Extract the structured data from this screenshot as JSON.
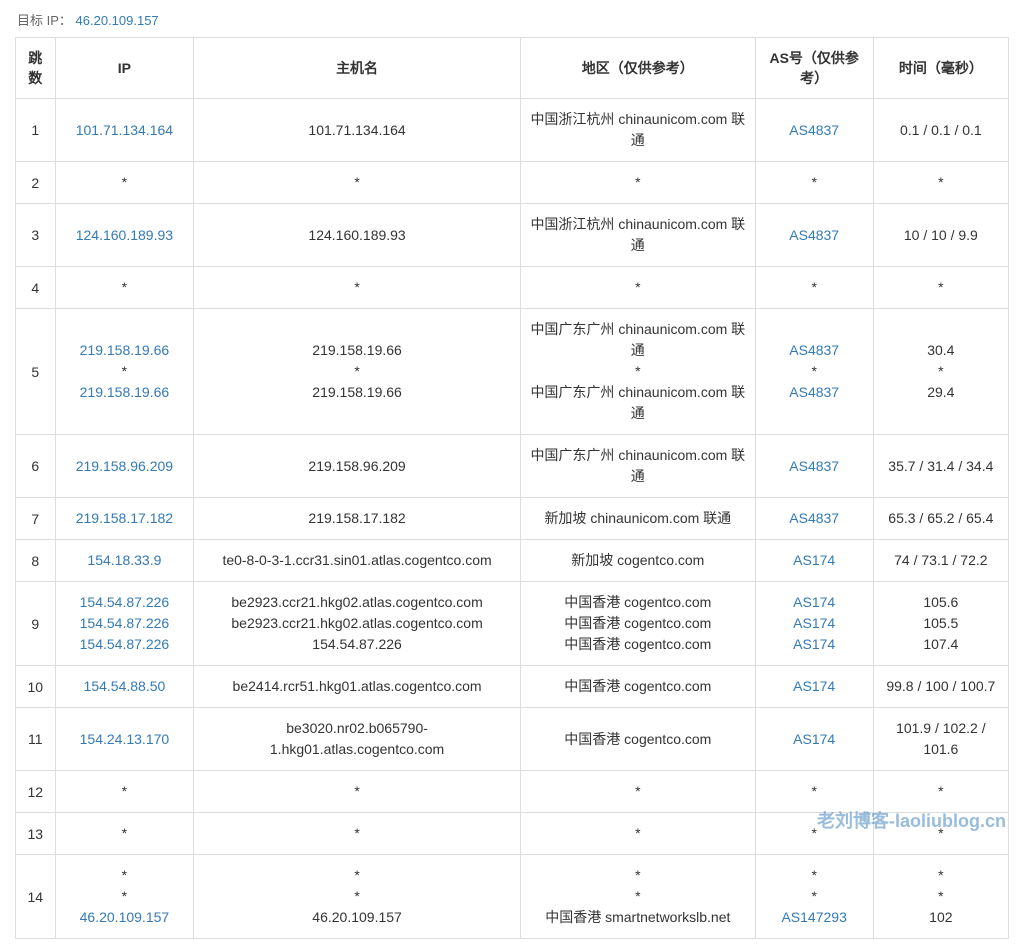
{
  "target_ip_label": "目标 IP：",
  "target_ip": "46.20.109.157",
  "columns": {
    "hop": "跳数",
    "ip": "IP",
    "hostname": "主机名",
    "region": "地区（仅供参考）",
    "as": "AS号（仅供参考）",
    "time": "时间（毫秒）"
  },
  "rows": [
    {
      "hop": "1",
      "ip": [
        "101.71.134.164"
      ],
      "ip_link": [
        true
      ],
      "hostname": [
        "101.71.134.164"
      ],
      "region": [
        "中国浙江杭州 chinaunicom.com 联通"
      ],
      "as": [
        "AS4837"
      ],
      "as_link": [
        true
      ],
      "time": [
        "0.1 / 0.1 / 0.1"
      ]
    },
    {
      "hop": "2",
      "ip": [
        "*"
      ],
      "ip_link": [
        false
      ],
      "hostname": [
        "*"
      ],
      "region": [
        "*"
      ],
      "as": [
        "*"
      ],
      "as_link": [
        false
      ],
      "time": [
        "*"
      ]
    },
    {
      "hop": "3",
      "ip": [
        "124.160.189.93"
      ],
      "ip_link": [
        true
      ],
      "hostname": [
        "124.160.189.93"
      ],
      "region": [
        "中国浙江杭州 chinaunicom.com 联通"
      ],
      "as": [
        "AS4837"
      ],
      "as_link": [
        true
      ],
      "time": [
        "10 / 10 / 9.9"
      ]
    },
    {
      "hop": "4",
      "ip": [
        "*"
      ],
      "ip_link": [
        false
      ],
      "hostname": [
        "*"
      ],
      "region": [
        "*"
      ],
      "as": [
        "*"
      ],
      "as_link": [
        false
      ],
      "time": [
        "*"
      ]
    },
    {
      "hop": "5",
      "ip": [
        "219.158.19.66",
        "*",
        "219.158.19.66"
      ],
      "ip_link": [
        true,
        false,
        true
      ],
      "hostname": [
        "219.158.19.66",
        "*",
        "219.158.19.66"
      ],
      "region": [
        "中国广东广州 chinaunicom.com 联通",
        "*",
        "中国广东广州 chinaunicom.com 联通"
      ],
      "as": [
        "AS4837",
        "*",
        "AS4837"
      ],
      "as_link": [
        true,
        false,
        true
      ],
      "time": [
        "30.4",
        "*",
        "29.4"
      ]
    },
    {
      "hop": "6",
      "ip": [
        "219.158.96.209"
      ],
      "ip_link": [
        true
      ],
      "hostname": [
        "219.158.96.209"
      ],
      "region": [
        "中国广东广州 chinaunicom.com 联通"
      ],
      "as": [
        "AS4837"
      ],
      "as_link": [
        true
      ],
      "time": [
        "35.7 / 31.4 / 34.4"
      ]
    },
    {
      "hop": "7",
      "ip": [
        "219.158.17.182"
      ],
      "ip_link": [
        true
      ],
      "hostname": [
        "219.158.17.182"
      ],
      "region": [
        "新加坡 chinaunicom.com 联通"
      ],
      "as": [
        "AS4837"
      ],
      "as_link": [
        true
      ],
      "time": [
        "65.3 / 65.2 / 65.4"
      ]
    },
    {
      "hop": "8",
      "ip": [
        "154.18.33.9"
      ],
      "ip_link": [
        true
      ],
      "hostname": [
        "te0-8-0-3-1.ccr31.sin01.atlas.cogentco.com"
      ],
      "region": [
        "新加坡 cogentco.com"
      ],
      "as": [
        "AS174"
      ],
      "as_link": [
        true
      ],
      "time": [
        "74 / 73.1 / 72.2"
      ]
    },
    {
      "hop": "9",
      "ip": [
        "154.54.87.226",
        "154.54.87.226",
        "154.54.87.226"
      ],
      "ip_link": [
        true,
        true,
        true
      ],
      "hostname": [
        "be2923.ccr21.hkg02.atlas.cogentco.com",
        "be2923.ccr21.hkg02.atlas.cogentco.com",
        "154.54.87.226"
      ],
      "region": [
        "中国香港 cogentco.com",
        "中国香港 cogentco.com",
        "中国香港 cogentco.com"
      ],
      "as": [
        "AS174",
        "AS174",
        "AS174"
      ],
      "as_link": [
        true,
        true,
        true
      ],
      "time": [
        "105.6",
        "105.5",
        "107.4"
      ]
    },
    {
      "hop": "10",
      "ip": [
        "154.54.88.50"
      ],
      "ip_link": [
        true
      ],
      "hostname": [
        "be2414.rcr51.hkg01.atlas.cogentco.com"
      ],
      "region": [
        "中国香港 cogentco.com"
      ],
      "as": [
        "AS174"
      ],
      "as_link": [
        true
      ],
      "time": [
        "99.8 / 100 / 100.7"
      ]
    },
    {
      "hop": "11",
      "ip": [
        "154.24.13.170"
      ],
      "ip_link": [
        true
      ],
      "hostname": [
        "be3020.nr02.b065790-1.hkg01.atlas.cogentco.com"
      ],
      "region": [
        "中国香港 cogentco.com"
      ],
      "as": [
        "AS174"
      ],
      "as_link": [
        true
      ],
      "time": [
        "101.9 / 102.2 / 101.6"
      ]
    },
    {
      "hop": "12",
      "ip": [
        "*"
      ],
      "ip_link": [
        false
      ],
      "hostname": [
        "*"
      ],
      "region": [
        "*"
      ],
      "as": [
        "*"
      ],
      "as_link": [
        false
      ],
      "time": [
        "*"
      ]
    },
    {
      "hop": "13",
      "ip": [
        "*"
      ],
      "ip_link": [
        false
      ],
      "hostname": [
        "*"
      ],
      "region": [
        "*"
      ],
      "as": [
        "*"
      ],
      "as_link": [
        false
      ],
      "time": [
        "*"
      ]
    },
    {
      "hop": "14",
      "ip": [
        "*",
        "*",
        "46.20.109.157"
      ],
      "ip_link": [
        false,
        false,
        true
      ],
      "hostname": [
        "*",
        "*",
        "46.20.109.157"
      ],
      "region": [
        "*",
        "*",
        "中国香港 smartnetworkslb.net"
      ],
      "as": [
        "*",
        "*",
        "AS147293"
      ],
      "as_link": [
        false,
        false,
        true
      ],
      "time": [
        "*",
        "*",
        "102"
      ]
    }
  ],
  "watermark": "老刘博客-laoliublog.cn",
  "colors": {
    "link": "#337ab7",
    "border": "#dddddd",
    "text": "#333333",
    "background": "#ffffff",
    "label_text": "#666666"
  }
}
